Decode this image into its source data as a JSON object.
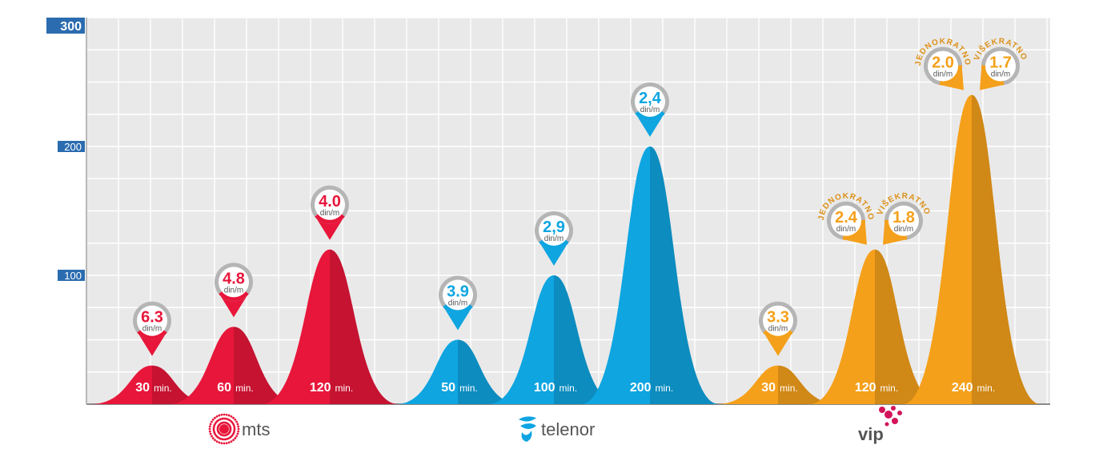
{
  "chart_data": {
    "type": "area",
    "title": "",
    "xlabel": "",
    "ylabel": "",
    "ylim": [
      0,
      300
    ],
    "yticks": [
      "300",
      "200",
      "100"
    ],
    "grid": true,
    "colors": {
      "mts": "#e8163a",
      "telenor": "#0ea5e1",
      "vip": "#f5a01a",
      "axis_label_bg": "#2b6cb0",
      "grid_bg": "#e9e9e9"
    },
    "groups": [
      {
        "operator": "mts",
        "logo_text": "mts",
        "color": "#e8163a",
        "items": [
          {
            "duration": "30",
            "unit": "min.",
            "value": 30,
            "pins": [
              {
                "price": "6.3",
                "unit": "din/m",
                "tag": ""
              }
            ]
          },
          {
            "duration": "60",
            "unit": "min.",
            "value": 60,
            "pins": [
              {
                "price": "4.8",
                "unit": "din/m",
                "tag": ""
              }
            ]
          },
          {
            "duration": "120",
            "unit": "min.",
            "value": 120,
            "pins": [
              {
                "price": "4.0",
                "unit": "din/m",
                "tag": ""
              }
            ]
          }
        ]
      },
      {
        "operator": "telenor",
        "logo_text": "telenor",
        "color": "#0ea5e1",
        "items": [
          {
            "duration": "50",
            "unit": "min.",
            "value": 50,
            "pins": [
              {
                "price": "3.9",
                "unit": "din/m",
                "tag": ""
              }
            ]
          },
          {
            "duration": "100",
            "unit": "min.",
            "value": 100,
            "pins": [
              {
                "price": "2,9",
                "unit": "din/m",
                "tag": ""
              }
            ]
          },
          {
            "duration": "200",
            "unit": "min.",
            "value": 200,
            "pins": [
              {
                "price": "2,4",
                "unit": "din/m",
                "tag": ""
              }
            ]
          }
        ]
      },
      {
        "operator": "vip",
        "logo_text": "vip",
        "color": "#f5a01a",
        "items": [
          {
            "duration": "30",
            "unit": "min.",
            "value": 30,
            "pins": [
              {
                "price": "3.3",
                "unit": "din/m",
                "tag": ""
              }
            ]
          },
          {
            "duration": "120",
            "unit": "min.",
            "value": 120,
            "pins": [
              {
                "price": "2.4",
                "unit": "din/m",
                "tag": "JEDNOKRATNO"
              },
              {
                "price": "1.8",
                "unit": "din/m",
                "tag": "VIŠEKRATNO"
              }
            ]
          },
          {
            "duration": "240",
            "unit": "min.",
            "value": 240,
            "pins": [
              {
                "price": "2.0",
                "unit": "din/m",
                "tag": "JEDNOKRATNO"
              },
              {
                "price": "1.7",
                "unit": "din/m",
                "tag": "VIŠEKRATNO"
              }
            ]
          }
        ]
      }
    ]
  }
}
